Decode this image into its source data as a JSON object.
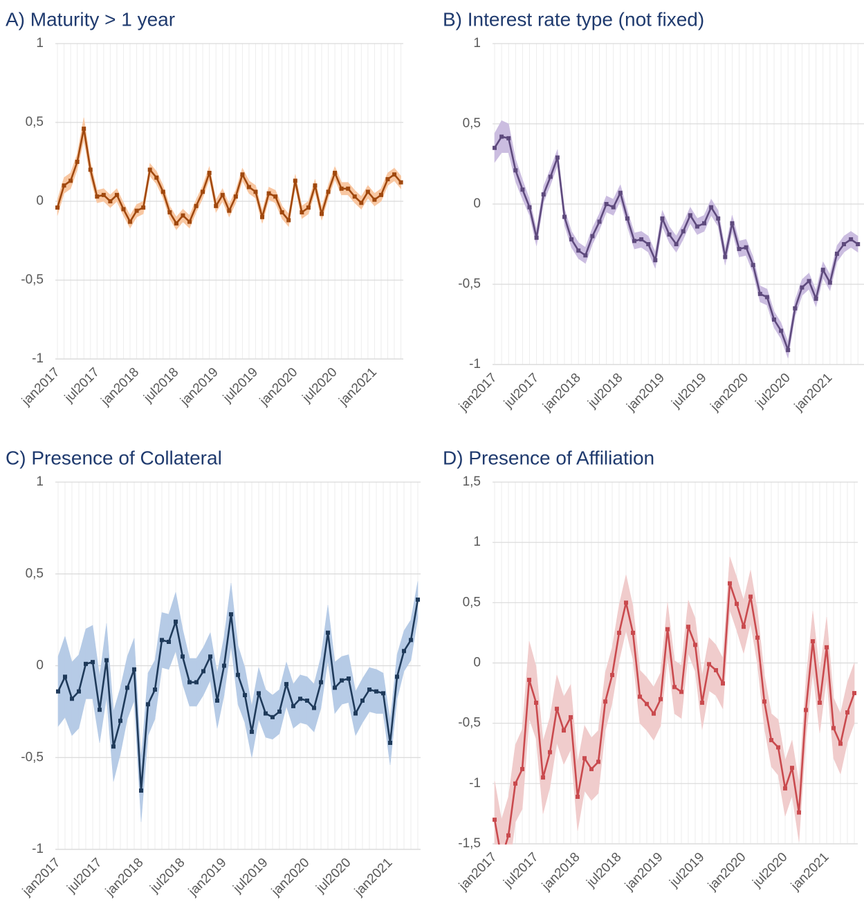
{
  "chart_data": [
    {
      "type": "line",
      "title": "A) Maturity > 1 year",
      "categories": [
        "jan2017",
        null,
        null,
        null,
        null,
        null,
        "jul2017",
        null,
        null,
        null,
        null,
        null,
        "jan2018",
        null,
        null,
        null,
        null,
        null,
        "jul2018",
        null,
        null,
        null,
        null,
        null,
        "jan2019",
        null,
        null,
        null,
        null,
        null,
        "jul2019",
        null,
        null,
        null,
        null,
        null,
        "jan2020",
        null,
        null,
        null,
        null,
        null,
        "jul2020",
        null,
        null,
        null,
        null,
        null,
        "jan2021",
        null,
        null,
        null,
        null
      ],
      "series": [
        {
          "color": "#a0480e",
          "band_color": "#f8c7a2",
          "values": [
            -0.04,
            0.1,
            0.13,
            0.25,
            0.46,
            0.2,
            0.03,
            0.04,
            0.0,
            0.04,
            -0.05,
            -0.13,
            -0.06,
            -0.04,
            0.2,
            0.15,
            0.06,
            -0.07,
            -0.14,
            -0.09,
            -0.13,
            -0.03,
            0.06,
            0.18,
            -0.03,
            0.04,
            -0.06,
            0.03,
            0.17,
            0.09,
            0.06,
            -0.1,
            0.05,
            0.03,
            -0.07,
            -0.12,
            0.13,
            -0.07,
            -0.04,
            0.1,
            -0.08,
            0.06,
            0.18,
            0.08,
            0.08,
            0.03,
            -0.01,
            0.06,
            0.01,
            0.04,
            0.14,
            0.17,
            0.12
          ],
          "errors": [
            0.05,
            0.05,
            0.05,
            0.05,
            0.07,
            0.05,
            0.04,
            0.04,
            0.04,
            0.04,
            0.04,
            0.04,
            0.04,
            0.04,
            0.04,
            0.04,
            0.04,
            0.04,
            0.04,
            0.04,
            0.04,
            0.04,
            0.04,
            0.04,
            0.04,
            0.04,
            0.04,
            0.04,
            0.04,
            0.04,
            0.04,
            0.04,
            0.04,
            0.04,
            0.04,
            0.04,
            0.04,
            0.04,
            0.04,
            0.04,
            0.04,
            0.04,
            0.04,
            0.04,
            0.04,
            0.04,
            0.04,
            0.04,
            0.04,
            0.04,
            0.04,
            0.04,
            0.04
          ]
        }
      ],
      "ylim": [
        -1,
        1
      ],
      "yticks": [
        -1,
        {
          "value": -0.5,
          "label": "-0,5"
        },
        0,
        {
          "value": 0.5,
          "label": "0,5"
        },
        1
      ],
      "grid": true
    },
    {
      "type": "line",
      "title": "B) Interest rate type (not fixed)",
      "categories": [
        "jan2017",
        null,
        null,
        null,
        null,
        null,
        "jul2017",
        null,
        null,
        null,
        null,
        null,
        "jan2018",
        null,
        null,
        null,
        null,
        null,
        "jul2018",
        null,
        null,
        null,
        null,
        null,
        "jan2019",
        null,
        null,
        null,
        null,
        null,
        "jul2019",
        null,
        null,
        null,
        null,
        null,
        "jan2020",
        null,
        null,
        null,
        null,
        null,
        "jul2020",
        null,
        null,
        null,
        null,
        null,
        "jan2021",
        null,
        null,
        null,
        null
      ],
      "series": [
        {
          "color": "#5e4a7d",
          "band_color": "#cbbde0",
          "values": [
            0.35,
            0.42,
            0.41,
            0.21,
            0.09,
            -0.02,
            -0.21,
            0.06,
            0.17,
            0.29,
            -0.08,
            -0.22,
            -0.29,
            -0.32,
            -0.2,
            -0.11,
            0.0,
            -0.02,
            0.07,
            -0.09,
            -0.23,
            -0.22,
            -0.25,
            -0.35,
            -0.09,
            -0.19,
            -0.25,
            -0.17,
            -0.07,
            -0.14,
            -0.12,
            -0.02,
            -0.09,
            -0.33,
            -0.12,
            -0.28,
            -0.27,
            -0.38,
            -0.56,
            -0.58,
            -0.72,
            -0.79,
            -0.91,
            -0.65,
            -0.52,
            -0.48,
            -0.59,
            -0.41,
            -0.49,
            -0.31,
            -0.25,
            -0.22,
            -0.25
          ],
          "errors": [
            0.09,
            0.1,
            0.09,
            0.07,
            0.06,
            0.05,
            0.05,
            0.05,
            0.05,
            0.05,
            0.05,
            0.05,
            0.05,
            0.05,
            0.05,
            0.05,
            0.05,
            0.05,
            0.05,
            0.05,
            0.05,
            0.05,
            0.05,
            0.05,
            0.05,
            0.05,
            0.05,
            0.05,
            0.05,
            0.05,
            0.05,
            0.05,
            0.05,
            0.05,
            0.05,
            0.05,
            0.05,
            0.05,
            0.05,
            0.05,
            0.05,
            0.05,
            0.05,
            0.05,
            0.05,
            0.05,
            0.05,
            0.05,
            0.05,
            0.05,
            0.05,
            0.05,
            0.05
          ]
        }
      ],
      "ylim": [
        -1,
        1
      ],
      "yticks": [
        -1,
        {
          "value": -0.5,
          "label": "-0,5"
        },
        0,
        {
          "value": 0.5,
          "label": "0,5"
        },
        1
      ],
      "grid": true
    },
    {
      "type": "line",
      "title": "C) Presence of Collateral",
      "categories": [
        "jan2017",
        null,
        null,
        null,
        null,
        null,
        "jul2017",
        null,
        null,
        null,
        null,
        null,
        "jan2018",
        null,
        null,
        null,
        null,
        null,
        "jul2018",
        null,
        null,
        null,
        null,
        null,
        "jan2019",
        null,
        null,
        null,
        null,
        null,
        "jul2019",
        null,
        null,
        null,
        null,
        null,
        "jan2020",
        null,
        null,
        null,
        null,
        null,
        "jul2020",
        null,
        null,
        null,
        null,
        null,
        "jan2021",
        null,
        null,
        null,
        null
      ],
      "series": [
        {
          "color": "#1f3a5a",
          "band_color": "#b6cbe6",
          "values": [
            -0.14,
            -0.06,
            -0.18,
            -0.14,
            0.01,
            0.02,
            -0.24,
            0.03,
            -0.44,
            -0.3,
            -0.12,
            -0.02,
            -0.68,
            -0.21,
            -0.13,
            0.14,
            0.13,
            0.24,
            0.05,
            -0.09,
            -0.09,
            -0.03,
            0.05,
            -0.19,
            0.0,
            0.28,
            -0.05,
            -0.16,
            -0.36,
            -0.15,
            -0.26,
            -0.28,
            -0.25,
            -0.1,
            -0.22,
            -0.18,
            -0.19,
            -0.23,
            -0.09,
            0.18,
            -0.12,
            -0.08,
            -0.07,
            -0.26,
            -0.19,
            -0.13,
            -0.14,
            -0.15,
            -0.42,
            -0.06,
            0.08,
            0.14,
            0.36
          ],
          "errors": [
            0.19,
            0.22,
            0.2,
            0.2,
            0.19,
            0.2,
            0.18,
            0.2,
            0.19,
            0.18,
            0.17,
            0.17,
            0.17,
            0.17,
            0.16,
            0.15,
            0.15,
            0.16,
            0.15,
            0.13,
            0.13,
            0.13,
            0.13,
            0.15,
            0.16,
            0.17,
            0.16,
            0.15,
            0.14,
            0.14,
            0.13,
            0.12,
            0.12,
            0.12,
            0.12,
            0.13,
            0.13,
            0.13,
            0.14,
            0.15,
            0.14,
            0.13,
            0.13,
            0.12,
            0.12,
            0.12,
            0.12,
            0.11,
            0.12,
            0.12,
            0.11,
            0.11,
            0.1
          ]
        }
      ],
      "ylim": [
        -1,
        1
      ],
      "yticks": [
        -1,
        {
          "value": -0.5,
          "label": "-0,5"
        },
        0,
        {
          "value": 0.5,
          "label": "0,5"
        },
        1
      ],
      "grid": true
    },
    {
      "type": "line",
      "title": "D) Presence of Affiliation",
      "categories": [
        "jan2017",
        null,
        null,
        null,
        null,
        null,
        "jul2017",
        null,
        null,
        null,
        null,
        null,
        "jan2018",
        null,
        null,
        null,
        null,
        null,
        "jul2018",
        null,
        null,
        null,
        null,
        null,
        "jan2019",
        null,
        null,
        null,
        null,
        null,
        "jul2019",
        null,
        null,
        null,
        null,
        null,
        "jan2020",
        null,
        null,
        null,
        null,
        null,
        "jul2020",
        null,
        null,
        null,
        null,
        null,
        "jan2021",
        null,
        null,
        null,
        null
      ],
      "series": [
        {
          "color": "#c94a4e",
          "band_color": "#f0cccc",
          "values": [
            -1.3,
            -1.62,
            -1.43,
            -1.0,
            -0.88,
            -0.14,
            -0.33,
            -0.95,
            -0.74,
            -0.38,
            -0.56,
            -0.45,
            -1.11,
            -0.79,
            -0.88,
            -0.82,
            -0.32,
            -0.1,
            0.25,
            0.5,
            0.25,
            -0.28,
            -0.34,
            -0.42,
            -0.3,
            0.28,
            -0.2,
            -0.24,
            0.3,
            0.15,
            -0.33,
            -0.01,
            -0.06,
            -0.17,
            0.66,
            0.49,
            0.3,
            0.55,
            0.21,
            -0.32,
            -0.64,
            -0.7,
            -1.04,
            -0.87,
            -1.24,
            -0.39,
            0.18,
            -0.33,
            0.13,
            -0.54,
            -0.67,
            -0.41,
            -0.25
          ],
          "errors": [
            0.32,
            0.32,
            0.32,
            0.32,
            0.33,
            0.32,
            0.3,
            0.3,
            0.29,
            0.28,
            0.28,
            0.27,
            0.28,
            0.27,
            0.26,
            0.26,
            0.24,
            0.23,
            0.23,
            0.23,
            0.22,
            0.22,
            0.22,
            0.22,
            0.22,
            0.22,
            0.22,
            0.22,
            0.22,
            0.22,
            0.22,
            0.22,
            0.21,
            0.21,
            0.22,
            0.22,
            0.22,
            0.22,
            0.22,
            0.22,
            0.22,
            0.23,
            0.23,
            0.23,
            0.24,
            0.24,
            0.25,
            0.25,
            0.25,
            0.25,
            0.25,
            0.25,
            0.25
          ]
        }
      ],
      "ylim": [
        -1.5,
        1.5
      ],
      "yticks": [
        {
          "value": -1.5,
          "label": "-1,5"
        },
        -1,
        {
          "value": -0.5,
          "label": "-0,5"
        },
        0,
        {
          "value": 0.5,
          "label": "0,5"
        },
        1,
        {
          "value": 1.5,
          "label": "1,5"
        }
      ],
      "grid": true
    }
  ]
}
